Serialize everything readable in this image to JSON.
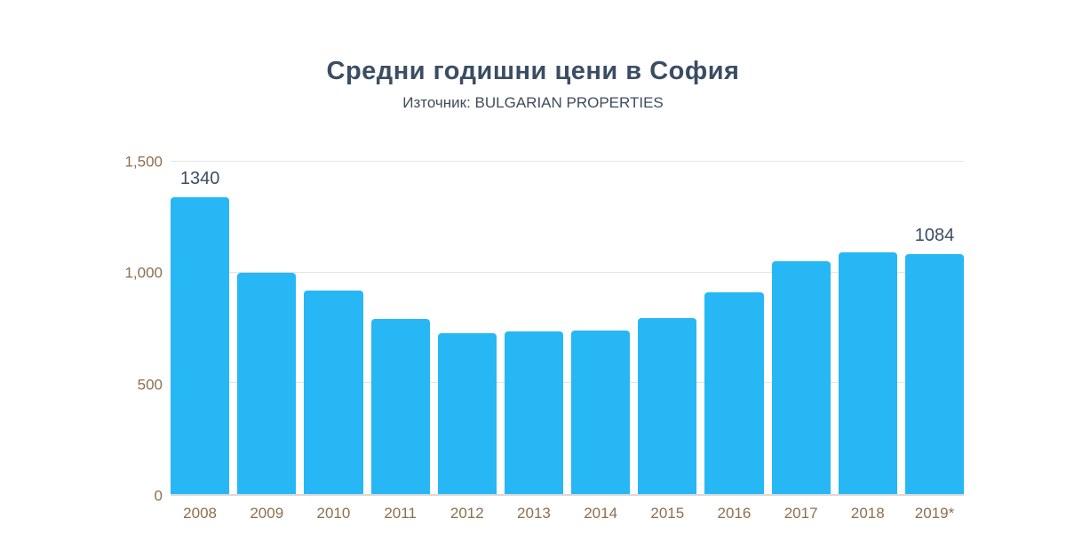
{
  "header": {
    "title": "Средни годишни цени в София",
    "subtitle": "Източник: BULGARIAN PROPERTIES"
  },
  "colors": {
    "bar": "#27b7f5",
    "title_color": "#3b4d63",
    "subtitle_color": "#3f4c5c",
    "axis_label": "#8e6f4d",
    "data_label": "#3b4d63",
    "gridline": "#e4e4e4",
    "baseline": "#d9d9d9",
    "background": "#ffffff"
  },
  "chart_data": {
    "type": "bar",
    "title": "Средни годишни цени в София",
    "subtitle": "Източник: BULGARIAN PROPERTIES",
    "categories": [
      "2008",
      "2009",
      "2010",
      "2011",
      "2012",
      "2013",
      "2014",
      "2015",
      "2016",
      "2017",
      "2018",
      "2019*"
    ],
    "values": [
      1340,
      1000,
      920,
      790,
      725,
      735,
      740,
      795,
      910,
      1050,
      1090,
      1084
    ],
    "data_labels": [
      "1340",
      "",
      "",
      "",
      "",
      "",
      "",
      "",
      "",
      "",
      "",
      "1084"
    ],
    "xlabel": "",
    "ylabel": "",
    "ylim": [
      0,
      1500
    ],
    "yticks": [
      0,
      500,
      1000,
      1500
    ],
    "ytick_labels": [
      "0",
      "500",
      "1,000",
      "1,500"
    ],
    "grid": true,
    "legend": false,
    "bar_color": "#27b7f5"
  }
}
